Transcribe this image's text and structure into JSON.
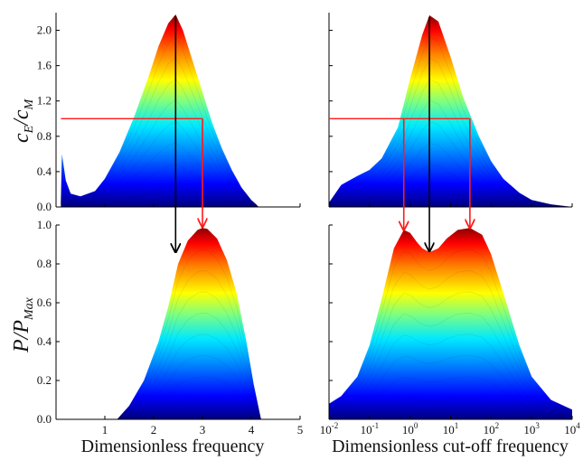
{
  "colors": {
    "low": "#00007f",
    "mid": "#00d4ff",
    "high": "#fff000",
    "peak": "#8b0000",
    "black_arrow": "#000000",
    "red_arrow": "#ff1a1a"
  },
  "labels": {
    "y_top_main": "c",
    "y_top_sub_e": "E",
    "y_top_slash": "/",
    "y_top_sub_m": "M",
    "y_bottom_main": "P/P",
    "y_bottom_sub": "Max",
    "x_left": "Dimensionless frequency",
    "x_right": "Dimensionless cut-off frequency"
  },
  "chart_data": [
    {
      "id": "top-left",
      "type": "area",
      "xscale": "linear",
      "xlim": [
        0,
        5
      ],
      "ylim": [
        0,
        2.2
      ],
      "yticks": [
        "0.0",
        "0.4",
        "0.8",
        "1.2",
        "1.6",
        "2.0"
      ],
      "ytick_values": [
        0,
        0.4,
        0.8,
        1.2,
        1.6,
        2.0
      ],
      "xticks": [],
      "x": [
        0.1,
        0.12,
        0.2,
        0.3,
        0.5,
        0.8,
        1.0,
        1.3,
        1.6,
        1.9,
        2.1,
        2.3,
        2.45,
        2.6,
        2.8,
        3.0,
        3.2,
        3.4,
        3.6,
        3.8,
        4.0,
        4.1,
        4.15
      ],
      "y": [
        0.05,
        0.6,
        0.3,
        0.15,
        0.12,
        0.18,
        0.32,
        0.62,
        1.02,
        1.48,
        1.82,
        2.08,
        2.18,
        2.0,
        1.65,
        1.3,
        0.95,
        0.66,
        0.42,
        0.22,
        0.08,
        0.03,
        0.0
      ],
      "threshold": {
        "y": 1.0,
        "x_start": 0.1,
        "x_end": 3.0
      },
      "peak_x": 2.45
    },
    {
      "id": "top-right",
      "type": "area",
      "xscale": "log",
      "xlim": [
        0.01,
        10000
      ],
      "ylim": [
        0,
        2.2
      ],
      "yticks": [],
      "xticks": [],
      "x": [
        0.01,
        0.02,
        0.05,
        0.1,
        0.2,
        0.5,
        1,
        2,
        3,
        5,
        10,
        20,
        50,
        100,
        200,
        500,
        1000,
        3000,
        10000
      ],
      "y": [
        0.05,
        0.25,
        0.35,
        0.42,
        0.55,
        0.9,
        1.45,
        1.95,
        2.17,
        2.1,
        1.7,
        1.25,
        0.8,
        0.52,
        0.32,
        0.16,
        0.08,
        0.03,
        0.0
      ],
      "threshold": {
        "y": 1.0,
        "x_start": 0.01,
        "x_end": 30
      },
      "peak_x": 3
    },
    {
      "id": "bottom-left",
      "type": "area",
      "xscale": "linear",
      "xlim": [
        0,
        5
      ],
      "ylim": [
        0,
        1.0
      ],
      "yticks": [
        "0.0",
        "0.2",
        "0.4",
        "0.6",
        "0.8",
        "1.0"
      ],
      "ytick_values": [
        0,
        0.2,
        0.4,
        0.6,
        0.8,
        1.0
      ],
      "xticks": [
        "1",
        "2",
        "3",
        "4",
        "5"
      ],
      "xtick_values": [
        1,
        2,
        3,
        4,
        5
      ],
      "x": [
        1.25,
        1.5,
        1.8,
        2.1,
        2.3,
        2.5,
        2.7,
        2.9,
        3.0,
        3.1,
        3.3,
        3.5,
        3.7,
        3.9,
        4.05,
        4.15,
        4.2
      ],
      "y": [
        0.0,
        0.07,
        0.2,
        0.4,
        0.58,
        0.8,
        0.92,
        0.975,
        0.985,
        0.98,
        0.93,
        0.82,
        0.65,
        0.4,
        0.18,
        0.06,
        0.0
      ]
    },
    {
      "id": "bottom-right",
      "type": "area",
      "xscale": "log",
      "xlim": [
        0.01,
        10000
      ],
      "ylim": [
        0,
        1.0
      ],
      "yticks": [],
      "xticks": [
        "10",
        "10",
        "10",
        "10",
        "10",
        "10",
        "10"
      ],
      "xtick_exponents": [
        "-2",
        "-1",
        "0",
        "1",
        "2",
        "3",
        "4"
      ],
      "xtick_values": [
        0.01,
        0.1,
        1,
        10,
        100,
        1000,
        10000
      ],
      "x": [
        0.01,
        0.02,
        0.05,
        0.1,
        0.2,
        0.4,
        0.7,
        1,
        1.5,
        2,
        3,
        5,
        8,
        15,
        30,
        60,
        100,
        200,
        500,
        1000,
        3000,
        10000
      ],
      "y": [
        0.08,
        0.12,
        0.22,
        0.38,
        0.62,
        0.88,
        0.975,
        0.96,
        0.91,
        0.88,
        0.86,
        0.88,
        0.93,
        0.975,
        0.985,
        0.95,
        0.85,
        0.65,
        0.38,
        0.22,
        0.1,
        0.05
      ]
    }
  ]
}
